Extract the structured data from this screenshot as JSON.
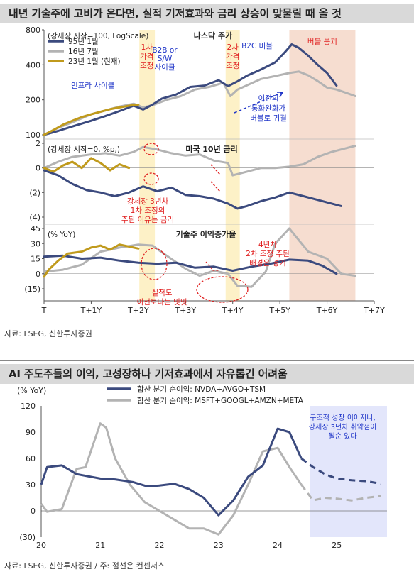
{
  "figure1": {
    "title": "내년 기술주에 고비가 온다면, 실적 기저효과와 금리 상승이 맞물릴 때 올 것",
    "source": "자료: LSEG, 신한투자증권",
    "colors": {
      "c95": "#3b4a7e",
      "c16": "#b3b3b3",
      "c23": "#c09a1c",
      "red": "#e02020",
      "blue": "#1f35c8",
      "bubble": "#f6ddd0",
      "yellow": "#fdf1c7"
    },
    "x_ticks": [
      "T",
      "T+1Y",
      "T+2Y",
      "T+3Y",
      "T+4Y",
      "T+5Y",
      "T+6Y",
      "T+7Y"
    ],
    "shade_labels": {
      "first": "1차\n가격\n조정",
      "second": "2차\n가격\n조정",
      "bubble": "버블 붕괴"
    },
    "chart_data": [
      {
        "type": "line",
        "title": "나스닥 주가",
        "note": "(강세장 시작=100, LogScale)",
        "y_scale": "log",
        "ylim": [
          100,
          800
        ],
        "y_ticks": [
          "800",
          "400",
          "200",
          "100"
        ],
        "legend": [
          "95년 1월",
          "16년 7월",
          "23년 1월 (현재)"
        ],
        "annotations": [
          "인프라 사이클",
          "B2B or\nS/W\n사이클",
          "B2C 버블",
          "이전의\n통화완화가\n버블로 귀결"
        ],
        "series": [
          {
            "name": "95년 1월",
            "x": [
              0,
              0.3,
              0.6,
              1.0,
              1.3,
              1.6,
              1.9,
              2.1,
              2.3,
              2.5,
              2.8,
              3.1,
              3.4,
              3.7,
              3.9,
              4.1,
              4.3,
              4.6,
              4.9,
              5.1,
              5.25,
              5.4,
              5.6,
              5.8,
              6.0,
              6.2
            ],
            "y": [
              100,
              108,
              118,
              132,
              145,
              160,
              178,
              165,
              182,
              205,
              222,
              258,
              265,
              295,
              262,
              288,
              322,
              365,
              420,
              510,
              600,
              560,
              480,
              400,
              340,
              265
            ]
          },
          {
            "name": "16년 7월",
            "x": [
              0,
              0.3,
              0.6,
              1.0,
              1.3,
              1.6,
              1.9,
              2.1,
              2.3,
              2.6,
              2.9,
              3.2,
              3.5,
              3.8,
              3.95,
              4.1,
              4.35,
              4.6,
              4.9,
              5.2,
              5.4,
              5.6,
              5.8,
              6.0,
              6.2,
              6.4,
              6.6
            ],
            "y": [
              100,
              115,
              128,
              150,
              162,
              175,
              185,
              172,
              180,
              200,
              215,
              245,
              258,
              280,
              215,
              245,
              272,
              302,
              320,
              340,
              350,
              325,
              290,
              255,
              245,
              230,
              215
            ]
          },
          {
            "name": "23년 1월 (현재)",
            "x": [
              0,
              0.2,
              0.4,
              0.6,
              0.8,
              1.0,
              1.2,
              1.4,
              1.6,
              1.8,
              2.0
            ],
            "y": [
              100,
              110,
              122,
              132,
              142,
              150,
              158,
              166,
              172,
              178,
              182
            ]
          }
        ]
      },
      {
        "type": "line",
        "title": "미국 10년 금리",
        "note": "(강세장 시작=0, %p,)",
        "ylim": [
          -4,
          2
        ],
        "y_ticks": [
          "2",
          "0",
          "(2)",
          "(4)"
        ],
        "annotations": [
          "강세장 3년차\n1차 조정의\n주된 이유는 금리"
        ],
        "series": [
          {
            "name": "95년 1월",
            "x": [
              0,
              0.3,
              0.6,
              0.9,
              1.2,
              1.5,
              1.8,
              2.1,
              2.4,
              2.7,
              3.0,
              3.3,
              3.6,
              3.9,
              4.1,
              4.3,
              4.6,
              4.9,
              5.2,
              5.5,
              5.8,
              6.1,
              6.3
            ],
            "y": [
              -0.2,
              -0.6,
              -1.3,
              -1.8,
              -2.0,
              -2.3,
              -2.0,
              -1.5,
              -1.9,
              -1.6,
              -2.2,
              -2.3,
              -2.5,
              -2.9,
              -3.3,
              -3.1,
              -2.7,
              -2.4,
              -2.0,
              -2.3,
              -2.6,
              -2.9,
              -3.1
            ]
          },
          {
            "name": "16년 7월",
            "x": [
              0,
              0.3,
              0.6,
              1.0,
              1.3,
              1.6,
              1.9,
              2.1,
              2.4,
              2.7,
              3.0,
              3.3,
              3.6,
              3.9,
              4.0,
              4.3,
              4.6,
              4.9,
              5.2,
              5.5,
              5.8,
              6.1,
              6.4,
              6.6
            ],
            "y": [
              0,
              0.5,
              0.9,
              1.1,
              1.2,
              1.0,
              1.3,
              1.7,
              1.5,
              1.2,
              1.0,
              1.1,
              0.6,
              0.4,
              -0.6,
              -0.3,
              0.0,
              0.0,
              0.1,
              0.3,
              0.9,
              1.3,
              1.6,
              1.8
            ]
          },
          {
            "name": "23년 1월 (현재)",
            "x": [
              0,
              0.2,
              0.4,
              0.6,
              0.8,
              1.0,
              1.2,
              1.4,
              1.6,
              1.8
            ],
            "y": [
              0.0,
              -0.3,
              0.2,
              0.5,
              0.0,
              0.8,
              0.4,
              -0.2,
              0.3,
              0.0
            ]
          }
        ]
      },
      {
        "type": "line",
        "title": "기술주 이익증가율",
        "note": "(% YoY)",
        "ylim": [
          -15,
          45
        ],
        "y_ticks": [
          "45",
          "30",
          "15",
          "0",
          "(15)"
        ],
        "annotations": [
          "실적도\n이전보다는 밋밋",
          "4년차\n2차 조정 주된\n배경은 경기"
        ],
        "series": [
          {
            "name": "95년 1월",
            "x": [
              0,
              0.4,
              0.8,
              1.2,
              1.6,
              2.0,
              2.4,
              2.8,
              3.2,
              3.6,
              4.0,
              4.4,
              4.8,
              5.2,
              5.6,
              5.9,
              6.2
            ],
            "y": [
              17,
              18,
              15,
              16,
              13,
              11,
              10,
              11,
              6,
              7,
              3,
              7,
              10,
              14,
              13,
              8,
              0
            ]
          },
          {
            "name": "16년 7월",
            "x": [
              0,
              0.4,
              0.8,
              1.2,
              1.6,
              2.0,
              2.3,
              2.6,
              3.0,
              3.3,
              3.6,
              3.9,
              4.1,
              4.4,
              4.7,
              4.9,
              5.2,
              5.6,
              6.0,
              6.3,
              6.6
            ],
            "y": [
              2,
              4,
              9,
              22,
              26,
              29,
              28,
              18,
              5,
              -2,
              3,
              0,
              -12,
              -13,
              2,
              30,
              45,
              22,
              15,
              0,
              -2
            ]
          },
          {
            "name": "23년 1월 (현재)",
            "x": [
              0,
              0.1,
              0.3,
              0.5,
              0.8,
              1.0,
              1.2,
              1.4,
              1.6,
              1.8,
              2.0
            ],
            "y": [
              -3,
              4,
              13,
              20,
              22,
              26,
              28,
              24,
              29,
              27,
              25
            ]
          }
        ]
      }
    ]
  },
  "figure2": {
    "title": "AI 주도주들의 이익, 고성장하나 기저효과에서 자유롭긴 어려움",
    "source": "자료: LSEG, 신한투자증권 / 주: 점선은 컨센서스",
    "annotation": "구조적 성장 이어지나,\n강세장 3년차 취약점이\n될순 있다",
    "colors": {
      "ai": "#3b4a7e",
      "mega": "#b3b3b3",
      "shade": "#e3e6fb"
    },
    "chart_data": {
      "type": "line",
      "ylabel": "(% YoY)",
      "ylim": [
        -30,
        120
      ],
      "y_ticks": [
        "120",
        "90",
        "60",
        "30",
        "0",
        "(30)"
      ],
      "x_ticks": [
        "20",
        "21",
        "22",
        "23",
        "24",
        "25"
      ],
      "series": [
        {
          "name": "합산 분기 순이익: NVDA+AVGO+TSM",
          "x": [
            20.0,
            20.1,
            20.35,
            20.6,
            21.0,
            21.25,
            21.55,
            21.8,
            22.0,
            22.25,
            22.5,
            22.75,
            23.0,
            23.25,
            23.5,
            23.75,
            24.0,
            24.2,
            24.4,
            24.6,
            24.8,
            25.0,
            25.25,
            25.5,
            25.75
          ],
          "y": [
            30,
            50,
            52,
            42,
            37,
            36,
            33,
            28,
            29,
            31,
            25,
            15,
            -5,
            12,
            39,
            52,
            94,
            90,
            60,
            50,
            42,
            37,
            35,
            34,
            31
          ],
          "forecast_from_index": 18
        },
        {
          "name": "합산 분기 순이익: MSFT+GOOGL+AMZN+META",
          "x": [
            20.0,
            20.1,
            20.35,
            20.6,
            20.75,
            21.0,
            21.1,
            21.25,
            21.5,
            21.75,
            22.0,
            22.25,
            22.5,
            22.75,
            23.0,
            23.25,
            23.5,
            23.75,
            24.0,
            24.2,
            24.4,
            24.6,
            24.8,
            25.0,
            25.25,
            25.5,
            25.75
          ],
          "y": [
            8,
            -1,
            2,
            48,
            50,
            100,
            95,
            60,
            30,
            10,
            0,
            -10,
            -20,
            -20,
            -27,
            -5,
            30,
            68,
            72,
            50,
            30,
            12,
            15,
            14,
            12,
            15,
            17
          ],
          "forecast_from_index": 20
        }
      ]
    }
  }
}
